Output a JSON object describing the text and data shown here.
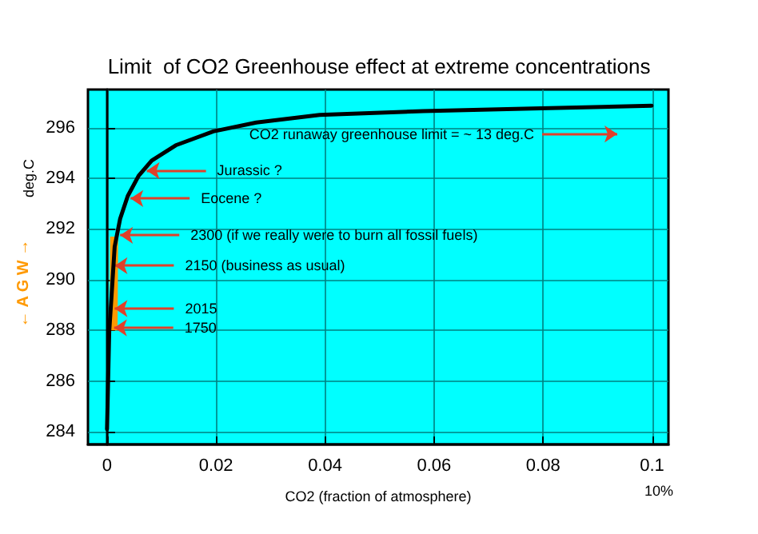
{
  "chart_data": {
    "type": "line",
    "title": "Limit  of CO2 Greenhouse effect at extreme concentrations",
    "xlabel": "CO2 (fraction of atmosphere)",
    "ylabel": "deg.C",
    "x": [
      0,
      0.0004,
      0.0009,
      0.0014,
      0.0024,
      0.0038,
      0.0058,
      0.0082,
      0.0126,
      0.0195,
      0.0274,
      0.039,
      0.058,
      0.078,
      0.0999
    ],
    "series": [
      {
        "color": "#000000",
        "values": [
          284.1,
          287.95,
          289.6,
          291.3,
          292.4,
          293.3,
          294.1,
          294.7,
          295.3,
          295.85,
          296.2,
          296.5,
          296.65,
          296.75,
          296.86
        ]
      },
      {
        "name": "← A G W →",
        "color": "#ff9900",
        "x": [
          0.0012,
          0.0013
        ],
        "values": [
          288,
          291.7
        ]
      }
    ],
    "xlim": [
      -0.0035,
      0.103
    ],
    "ylim": [
      283.5,
      297.5
    ],
    "xticks": [
      0,
      0.02,
      0.04,
      0.06,
      0.08,
      0.1
    ],
    "yticks": [
      284,
      286,
      288,
      290,
      292,
      294,
      296
    ],
    "grid": true,
    "legend": false,
    "marker": "none",
    "line_style": "solid",
    "annotations": [
      "CO2 runaway greenhouse limit = ~ 13 deg.C",
      {
        "text": "Jurassic ?",
        "x": 0.0073,
        "y": 294.3
      },
      {
        "text": "Eocene ?",
        "x": 0.0043,
        "y": 293.2
      },
      {
        "text": "2300 (if we really were to burn all fossil fuels)",
        "x": 0.0024,
        "y": 291.75
      },
      {
        "text": "2150 (business as usual)",
        "x": 0.0014,
        "y": 290.55
      },
      {
        "text": "2015",
        "x": 0.0014,
        "y": 288.86
      },
      {
        "text": "1750",
        "x": 0.0013,
        "y": 288.1
      },
      "10%"
    ]
  }
}
